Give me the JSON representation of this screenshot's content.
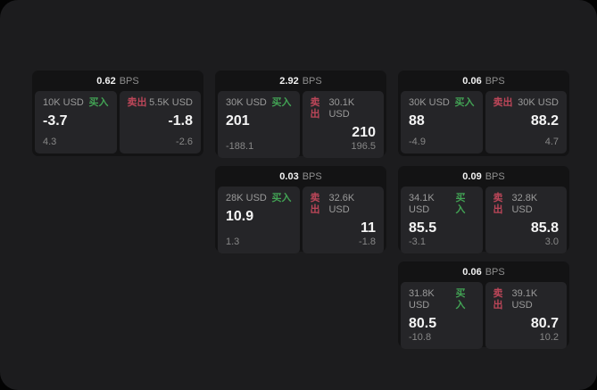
{
  "labels": {
    "bps_unit": "BPS",
    "buy": "买入",
    "sell": "卖出"
  },
  "colors": {
    "page_bg": "#1c1c1e",
    "card_bg": "#131314",
    "panel_bg": "#252528",
    "buy_green": "#42a254",
    "sell_red": "#bc4659"
  },
  "cards": [
    {
      "bps": "0.62",
      "buy": {
        "amount": "10K USD",
        "price": "-3.7",
        "delta": "4.3"
      },
      "sell": {
        "amount": "5.5K USD",
        "price": "-1.8",
        "delta": "-2.6"
      }
    },
    {
      "bps": "2.92",
      "buy": {
        "amount": "30K USD",
        "price": "201",
        "delta": "-188.1"
      },
      "sell": {
        "amount": "30.1K USD",
        "price": "210",
        "delta": "196.5"
      }
    },
    {
      "bps": "0.06",
      "buy": {
        "amount": "30K USD",
        "price": "88",
        "delta": "-4.9"
      },
      "sell": {
        "amount": "30K USD",
        "price": "88.2",
        "delta": "4.7"
      }
    },
    {
      "bps": "0.03",
      "buy": {
        "amount": "28K USD",
        "price": "10.9",
        "delta": "1.3"
      },
      "sell": {
        "amount": "32.6K USD",
        "price": "11",
        "delta": "-1.8"
      }
    },
    {
      "bps": "0.09",
      "buy": {
        "amount": "34.1K USD",
        "price": "85.5",
        "delta": "-3.1"
      },
      "sell": {
        "amount": "32.8K USD",
        "price": "85.8",
        "delta": "3.0"
      }
    },
    {
      "bps": "0.06",
      "buy": {
        "amount": "31.8K USD",
        "price": "80.5",
        "delta": "-10.8"
      },
      "sell": {
        "amount": "39.1K USD",
        "price": "80.7",
        "delta": "10.2"
      }
    }
  ]
}
